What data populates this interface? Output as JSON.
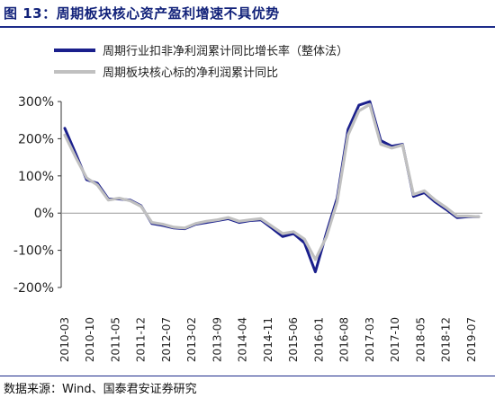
{
  "header": {
    "title": "图 13：周期板块核心资产盈利增速不具优势"
  },
  "source": "数据来源：Wind、国泰君安证券研究",
  "chart_data": {
    "type": "line",
    "title": "",
    "xlabel": "",
    "ylabel": "",
    "ylim": [
      -200,
      300
    ],
    "yticks": [
      "-200%",
      "-100%",
      "0%",
      "100%",
      "200%",
      "300%"
    ],
    "ytick_values": [
      -200,
      -100,
      0,
      100,
      200,
      300
    ],
    "grid": "zero line only",
    "legend_position": "top-left",
    "x_tick_labels": [
      "2010-03",
      "2010-10",
      "2011-05",
      "2011-12",
      "2012-07",
      "2013-02",
      "2013-09",
      "2014-04",
      "2014-11",
      "2015-06",
      "2016-01",
      "2016-08",
      "2017-03",
      "2017-10",
      "2018-05",
      "2018-12",
      "2019-07"
    ],
    "x": [
      "2010-03",
      "2010-06",
      "2010-09",
      "2010-12",
      "2011-03",
      "2011-06",
      "2011-09",
      "2011-12",
      "2012-03",
      "2012-06",
      "2012-09",
      "2012-12",
      "2013-03",
      "2013-06",
      "2013-09",
      "2013-12",
      "2014-03",
      "2014-06",
      "2014-09",
      "2014-12",
      "2015-03",
      "2015-06",
      "2015-09",
      "2015-12",
      "2016-03",
      "2016-06",
      "2016-09",
      "2016-12",
      "2017-03",
      "2017-06",
      "2017-09",
      "2017-12",
      "2018-03",
      "2018-06",
      "2018-09",
      "2018-12",
      "2019-03",
      "2019-06",
      "2019-09"
    ],
    "series": [
      {
        "name": "周期行业扣非净利润累计同比增长率（整体法）",
        "color": "#1a1f8c",
        "values": [
          228,
          160,
          90,
          80,
          38,
          38,
          35,
          20,
          -28,
          -33,
          -40,
          -42,
          -30,
          -25,
          -20,
          -15,
          -25,
          -20,
          -18,
          -40,
          -63,
          -55,
          -80,
          -158,
          -55,
          40,
          225,
          290,
          300,
          195,
          180,
          185,
          45,
          55,
          30,
          10,
          -12,
          -10,
          -10
        ]
      },
      {
        "name": "周期板块核心标的净利润累计同比",
        "color": "#c0c0c0",
        "values": [
          210,
          150,
          95,
          75,
          35,
          40,
          33,
          18,
          -25,
          -30,
          -38,
          -40,
          -28,
          -22,
          -18,
          -12,
          -22,
          -18,
          -15,
          -35,
          -55,
          -50,
          -70,
          -125,
          -65,
          30,
          210,
          275,
          292,
          185,
          175,
          183,
          50,
          60,
          35,
          15,
          -8,
          -8,
          -10
        ]
      }
    ]
  }
}
